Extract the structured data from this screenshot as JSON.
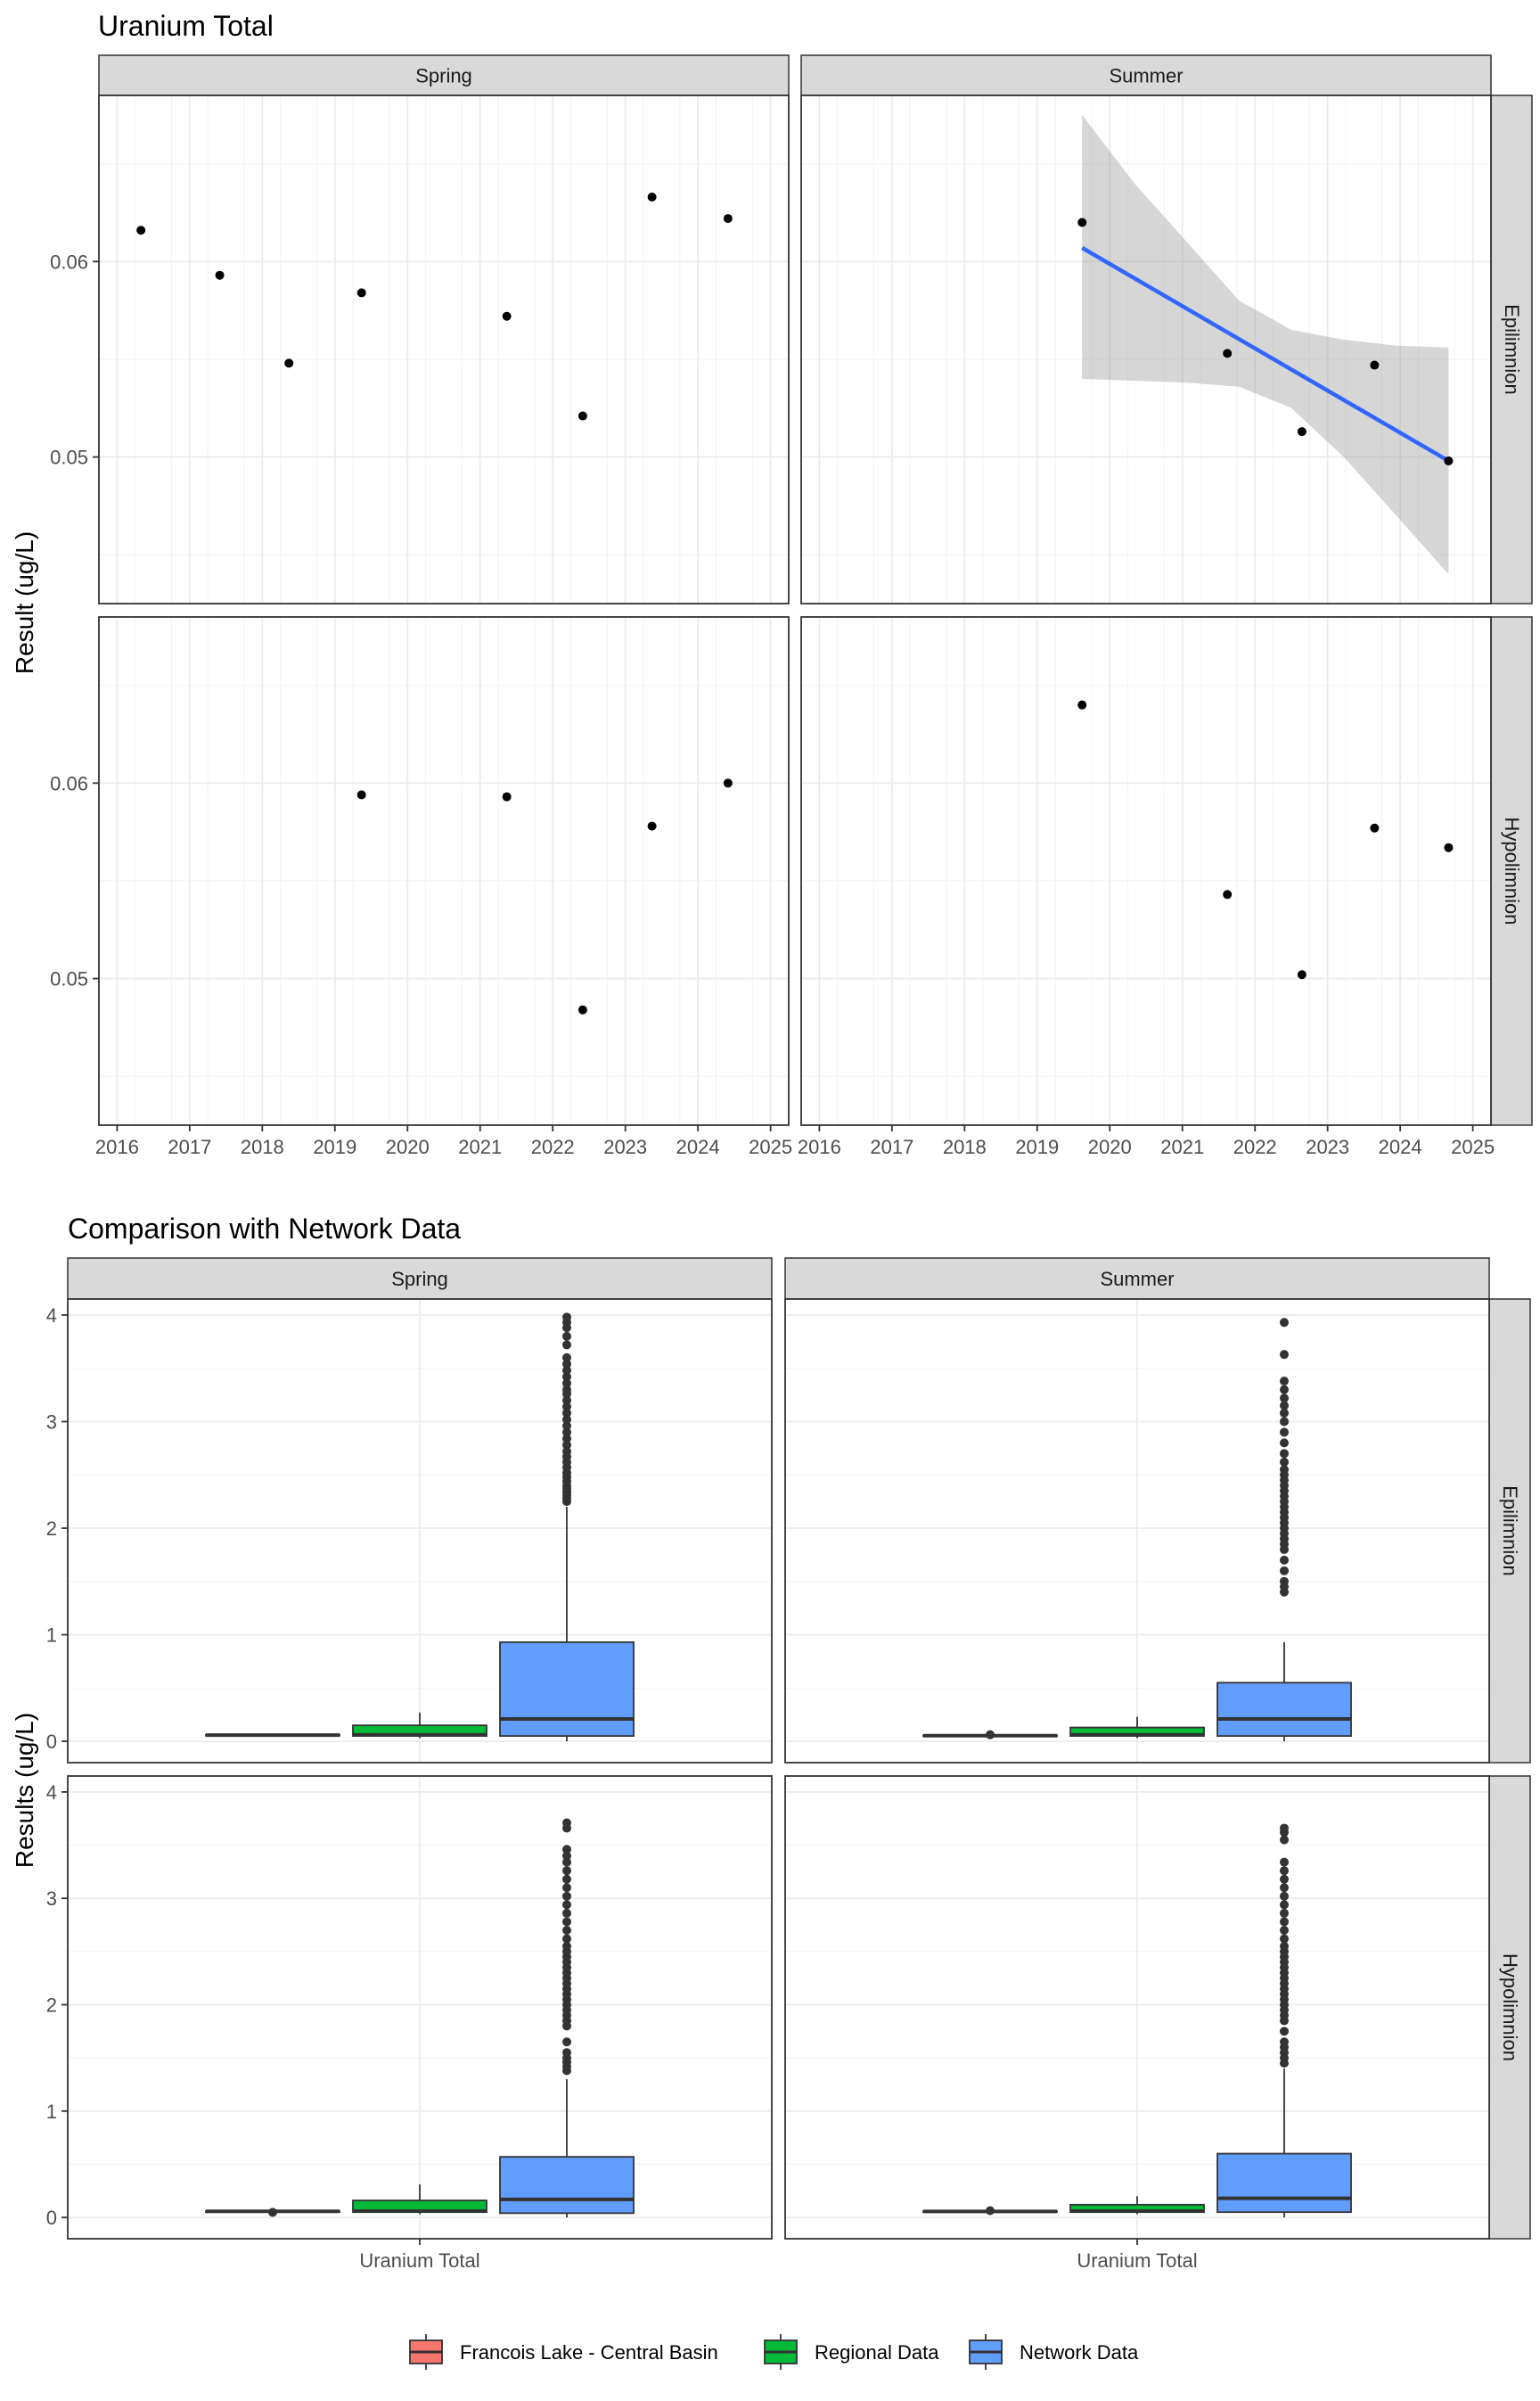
{
  "chart_data": [
    {
      "type": "scatter",
      "title": "Uranium Total",
      "ylabel": "Result (ug/L)",
      "xlabel": "",
      "ylim": [
        0.0425,
        0.0685
      ],
      "xlim": [
        2015.75,
        2025.25
      ],
      "yticks": [
        0.05,
        0.06
      ],
      "ytick_labels": [
        "0.05",
        "0.06"
      ],
      "xticks": [
        2016,
        2017,
        2018,
        2019,
        2020,
        2021,
        2022,
        2023,
        2024,
        2025
      ],
      "xtick_labels": [
        "2016",
        "2017",
        "2018",
        "2019",
        "2020",
        "2021",
        "2022",
        "2023",
        "2024",
        "2025"
      ],
      "grid": true,
      "columns": [
        "Spring",
        "Summer"
      ],
      "rows": [
        "Epilimnion",
        "Hypolimnion"
      ],
      "panels": [
        {
          "column": "Spring",
          "row": "Epilimnion",
          "x": [
            "2016-05-01",
            "2017-06-01",
            "2018-05-15",
            "2019-05-15",
            "2021-05-15",
            "2022-06-01",
            "2023-05-15",
            "2024-06-01"
          ],
          "y": [
            0.0616,
            0.0593,
            0.0548,
            0.0584,
            0.0572,
            0.0521,
            0.0633,
            0.0622
          ]
        },
        {
          "column": "Summer",
          "row": "Epilimnion",
          "x": [
            "2019-08-15",
            "2021-08-15",
            "2022-08-25",
            "2023-08-25",
            "2024-09-01"
          ],
          "y": [
            0.062,
            0.0553,
            0.0513,
            0.0547,
            0.0498
          ],
          "trend": {
            "x": [
              "2019-08-15",
              "2024-09-01"
            ],
            "y": [
              0.0607,
              0.0498
            ],
            "ci_lower": [
              0.054,
              0.0539,
              0.0538,
              0.0536,
              0.0525,
              0.05,
              0.047,
              0.044
            ],
            "ci_upper": [
              0.0675,
              0.064,
              0.061,
              0.058,
              0.0565,
              0.056,
              0.0557,
              0.0556
            ]
          }
        },
        {
          "column": "Spring",
          "row": "Hypolimnion",
          "x": [
            "2019-05-15",
            "2021-05-15",
            "2022-06-01",
            "2023-05-15",
            "2024-06-01"
          ],
          "y": [
            0.0594,
            0.0593,
            0.0484,
            0.0578,
            0.06
          ]
        },
        {
          "column": "Summer",
          "row": "Hypolimnion",
          "x": [
            "2019-08-15",
            "2021-08-15",
            "2022-08-25",
            "2023-08-25",
            "2024-09-01"
          ],
          "y": [
            0.064,
            0.0543,
            0.0502,
            0.0577,
            0.0567
          ]
        }
      ]
    },
    {
      "type": "box",
      "title": "Comparison with Network Data",
      "ylabel": "Results (ug/L)",
      "xlabel": "",
      "category": "Uranium Total",
      "ylim": [
        -0.2,
        4.15
      ],
      "yticks": [
        0,
        1,
        2,
        3,
        4
      ],
      "ytick_labels": [
        "0",
        "1",
        "2",
        "3",
        "4"
      ],
      "grid": true,
      "columns": [
        "Spring",
        "Summer"
      ],
      "rows": [
        "Epilimnion",
        "Hypolimnion"
      ],
      "legend": {
        "position": "bottom",
        "entries": [
          {
            "name": "Francois Lake - Central Basin",
            "color": "#F8766D"
          },
          {
            "name": "Regional Data",
            "color": "#00BA38"
          },
          {
            "name": "Network Data",
            "color": "#619CFF"
          }
        ]
      },
      "panels": [
        {
          "column": "Spring",
          "row": "Epilimnion",
          "boxes": [
            {
              "group": "Francois Lake - Central Basin",
              "q1": 0.054,
              "median": 0.058,
              "q3": 0.062,
              "lower": 0.052,
              "upper": 0.063,
              "outliers": []
            },
            {
              "group": "Regional Data",
              "q1": 0.05,
              "median": 0.06,
              "q3": 0.15,
              "lower": 0.03,
              "upper": 0.27,
              "outliers": []
            },
            {
              "group": "Network Data",
              "q1": 0.05,
              "median": 0.21,
              "q3": 0.93,
              "lower": 0.0,
              "upper": 2.2,
              "outliers": [
                2.25,
                2.28,
                2.31,
                2.34,
                2.37,
                2.4,
                2.44,
                2.48,
                2.52,
                2.57,
                2.62,
                2.67,
                2.72,
                2.78,
                2.84,
                2.9,
                2.96,
                3.02,
                3.08,
                3.14,
                3.2,
                3.26,
                3.3,
                3.36,
                3.42,
                3.48,
                3.54,
                3.6,
                3.72,
                3.8,
                3.88,
                3.93,
                3.98
              ]
            }
          ]
        },
        {
          "column": "Summer",
          "row": "Epilimnion",
          "boxes": [
            {
              "group": "Francois Lake - Central Basin",
              "q1": 0.05,
              "median": 0.053,
              "q3": 0.056,
              "lower": 0.05,
              "upper": 0.062,
              "outliers": [
                0.062
              ]
            },
            {
              "group": "Regional Data",
              "q1": 0.05,
              "median": 0.06,
              "q3": 0.13,
              "lower": 0.03,
              "upper": 0.23,
              "outliers": []
            },
            {
              "group": "Network Data",
              "q1": 0.05,
              "median": 0.21,
              "q3": 0.55,
              "lower": 0.0,
              "upper": 0.93,
              "outliers": [
                1.4,
                1.45,
                1.5,
                1.6,
                1.7,
                1.8,
                1.85,
                1.9,
                1.95,
                2.0,
                2.05,
                2.1,
                2.15,
                2.2,
                2.25,
                2.3,
                2.35,
                2.4,
                2.45,
                2.5,
                2.55,
                2.62,
                2.7,
                2.8,
                2.9,
                3.0,
                3.08,
                3.15,
                3.22,
                3.3,
                3.38,
                3.63,
                3.93
              ]
            }
          ]
        },
        {
          "column": "Spring",
          "row": "Hypolimnion",
          "boxes": [
            {
              "group": "Francois Lake - Central Basin",
              "q1": 0.055,
              "median": 0.058,
              "q3": 0.06,
              "lower": 0.053,
              "upper": 0.06,
              "outliers": [
                0.048
              ]
            },
            {
              "group": "Regional Data",
              "q1": 0.05,
              "median": 0.06,
              "q3": 0.16,
              "lower": 0.03,
              "upper": 0.31,
              "outliers": []
            },
            {
              "group": "Network Data",
              "q1": 0.04,
              "median": 0.17,
              "q3": 0.57,
              "lower": 0.0,
              "upper": 1.3,
              "outliers": [
                1.38,
                1.42,
                1.46,
                1.5,
                1.55,
                1.65,
                1.8,
                1.85,
                1.9,
                1.95,
                2.0,
                2.05,
                2.1,
                2.15,
                2.2,
                2.25,
                2.3,
                2.35,
                2.4,
                2.45,
                2.5,
                2.55,
                2.62,
                2.7,
                2.78,
                2.86,
                2.94,
                3.02,
                3.1,
                3.18,
                3.26,
                3.34,
                3.4,
                3.46,
                3.66,
                3.71
              ]
            }
          ]
        },
        {
          "column": "Summer",
          "row": "Hypolimnion",
          "boxes": [
            {
              "group": "Francois Lake - Central Basin",
              "q1": 0.054,
              "median": 0.057,
              "q3": 0.06,
              "lower": 0.05,
              "upper": 0.064,
              "outliers": [
                0.064
              ]
            },
            {
              "group": "Regional Data",
              "q1": 0.05,
              "median": 0.06,
              "q3": 0.12,
              "lower": 0.03,
              "upper": 0.2,
              "outliers": []
            },
            {
              "group": "Network Data",
              "q1": 0.05,
              "median": 0.18,
              "q3": 0.6,
              "lower": 0.0,
              "upper": 1.4,
              "outliers": [
                1.45,
                1.5,
                1.55,
                1.6,
                1.65,
                1.75,
                1.85,
                1.9,
                1.95,
                2.0,
                2.05,
                2.1,
                2.15,
                2.2,
                2.25,
                2.3,
                2.35,
                2.4,
                2.45,
                2.5,
                2.55,
                2.62,
                2.7,
                2.78,
                2.86,
                2.94,
                3.02,
                3.1,
                3.18,
                3.26,
                3.34,
                3.55,
                3.62,
                3.66
              ]
            }
          ]
        }
      ]
    }
  ]
}
